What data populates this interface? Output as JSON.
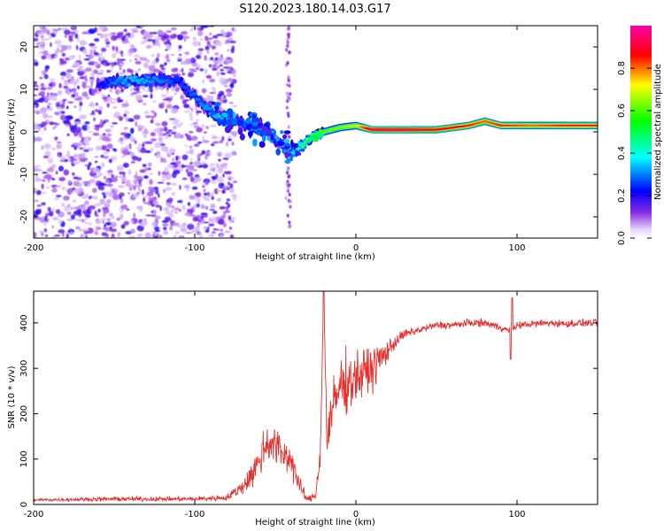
{
  "title": "S120.2023.180.14.03.G17",
  "chart_data": [
    {
      "type": "heatmap",
      "xlabel": "Height of straight line (km)",
      "ylabel": "Frequency (Hz)",
      "xlim": [
        -200,
        150
      ],
      "ylim": [
        -25,
        25
      ],
      "xticks": [
        -200,
        -100,
        0,
        100
      ],
      "yticks": [
        -20,
        -10,
        0,
        10,
        20
      ],
      "colorbar": {
        "label": "Normalized spectral amplitude",
        "range": [
          0,
          1
        ],
        "ticks": [
          0.0,
          0.2,
          0.4,
          0.6,
          0.8
        ],
        "colormap": "rainbow (white-violet-blue-cyan-green-yellow-red-magenta)"
      },
      "signal_band": [
        {
          "x": -160,
          "y": 11,
          "amp": 0.2
        },
        {
          "x": -150,
          "y": 12,
          "amp": 0.3
        },
        {
          "x": -140,
          "y": 12,
          "amp": 0.35
        },
        {
          "x": -120,
          "y": 12,
          "amp": 0.3
        },
        {
          "x": -110,
          "y": 12,
          "amp": 0.25
        },
        {
          "x": -85,
          "y": 3,
          "amp": 0.35
        },
        {
          "x": -70,
          "y": 2,
          "amp": 0.3
        },
        {
          "x": -55,
          "y": 0,
          "amp": 0.3
        },
        {
          "x": -40,
          "y": -5,
          "amp": 0.35
        },
        {
          "x": -30,
          "y": -2,
          "amp": 0.5
        },
        {
          "x": -20,
          "y": 0,
          "amp": 0.6
        },
        {
          "x": -10,
          "y": 1,
          "amp": 0.65
        },
        {
          "x": 0,
          "y": 1.5,
          "amp": 0.7
        },
        {
          "x": 10,
          "y": 0.5,
          "amp": 0.95
        },
        {
          "x": 30,
          "y": 0.5,
          "amp": 0.95
        },
        {
          "x": 50,
          "y": 0.5,
          "amp": 0.9
        },
        {
          "x": 70,
          "y": 1.5,
          "amp": 0.85
        },
        {
          "x": 80,
          "y": 2.5,
          "amp": 0.8
        },
        {
          "x": 90,
          "y": 1.5,
          "amp": 0.85
        },
        {
          "x": 110,
          "y": 1.5,
          "amp": 0.8
        },
        {
          "x": 130,
          "y": 1.5,
          "amp": 0.85
        },
        {
          "x": 150,
          "y": 1.5,
          "amp": 0.85
        }
      ]
    },
    {
      "type": "line",
      "xlabel": "Height of straight line (km)",
      "ylabel": "SNR (10 * v/v)",
      "xlim": [
        -200,
        150
      ],
      "ylim": [
        0,
        470
      ],
      "xticks": [
        -200,
        -100,
        0,
        100
      ],
      "yticks": [
        0,
        100,
        200,
        300,
        400
      ],
      "color": "#e8302c",
      "series": [
        {
          "x": [
            -200,
            -150,
            -100,
            -80,
            -70,
            -62,
            -55,
            -50,
            -45,
            -40,
            -35,
            -30,
            -25,
            -22,
            -20,
            -18,
            -15,
            -10,
            -5,
            0,
            5,
            10,
            15,
            20,
            25,
            30,
            40,
            50,
            60,
            70,
            80,
            90,
            97,
            100,
            110,
            120,
            130,
            140,
            150
          ],
          "y": [
            10,
            12,
            12,
            15,
            40,
            80,
            140,
            130,
            110,
            100,
            40,
            10,
            20,
            120,
            470,
            150,
            200,
            260,
            270,
            280,
            290,
            300,
            320,
            340,
            360,
            375,
            385,
            395,
            395,
            400,
            400,
            390,
            380,
            395,
            398,
            400,
            398,
            400,
            400
          ],
          "noise": [
            5,
            7,
            7,
            10,
            25,
            55,
            70,
            65,
            60,
            55,
            30,
            10,
            15,
            60,
            0,
            70,
            90,
            110,
            90,
            80,
            80,
            80,
            50,
            35,
            20,
            15,
            12,
            12,
            12,
            12,
            12,
            12,
            12,
            12,
            12,
            12,
            12,
            12,
            12
          ]
        }
      ]
    }
  ]
}
